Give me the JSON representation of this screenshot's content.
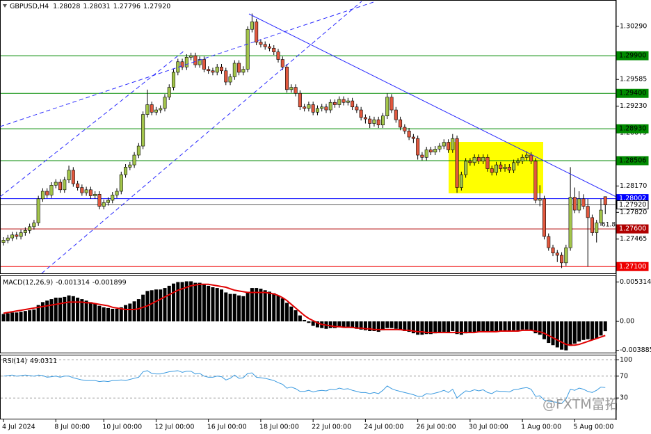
{
  "chart_data": [
    {
      "type": "candlestick",
      "symbol": "GBPUSD,H4",
      "legend_values": [
        "1.28028",
        "1.28031",
        "1.27796",
        "1.27920"
      ],
      "up_color": "#a3c54a",
      "down_color": "#e2583e",
      "open": [
        1.2742,
        1.2745,
        1.2748,
        1.2752,
        1.275,
        1.2755,
        1.2758,
        1.2763,
        1.2768,
        1.28,
        1.281,
        1.2805,
        1.2818,
        1.2822,
        1.2812,
        1.2825,
        1.2838,
        1.282,
        1.2815,
        1.2808,
        1.2812,
        1.2804,
        1.2806,
        1.279,
        1.2795,
        1.2798,
        1.2805,
        1.281,
        1.2832,
        1.2842,
        1.2845,
        1.2858,
        1.287,
        1.2912,
        1.2925,
        1.2915,
        1.2918,
        1.292,
        1.2935,
        1.2948,
        1.2968,
        1.2982,
        1.2975,
        1.2988,
        1.299,
        1.2978,
        1.2985,
        1.2972,
        1.297,
        1.2968,
        1.2975,
        1.297,
        1.2955,
        1.2962,
        1.298,
        1.2968,
        1.2972,
        1.3025,
        1.3035,
        1.3008,
        1.3005,
        1.3002,
        1.3,
        1.2995,
        1.2985,
        1.2975,
        1.2945,
        1.2948,
        1.294,
        1.2922,
        1.292,
        1.2925,
        1.2915,
        1.292,
        1.2922,
        1.2918,
        1.2928,
        1.2925,
        1.2932,
        1.2928,
        1.293,
        1.2922,
        1.2918,
        1.2908,
        1.2906,
        1.29,
        1.2905,
        1.2898,
        1.291,
        1.2935,
        1.2918,
        1.2905,
        1.2895,
        1.289,
        1.2882,
        1.288,
        1.2858,
        1.2855,
        1.2865,
        1.2862,
        1.2866,
        1.287,
        1.2875,
        1.2865,
        1.288,
        1.2815,
        1.2832,
        1.285,
        1.2848,
        1.2855,
        1.285,
        1.2855,
        1.284,
        1.2835,
        1.2845,
        1.284,
        1.2842,
        1.2838,
        1.2848,
        1.285,
        1.2855,
        1.2858,
        1.285,
        1.2798,
        1.28,
        1.275,
        1.2735,
        1.2728,
        1.2725,
        1.2715,
        1.2735,
        1.2802,
        1.2785,
        1.28,
        1.279,
        1.2775,
        1.2755,
        1.2768,
        1.28028
      ],
      "high": [
        1.2749,
        1.2752,
        1.2756,
        1.2756,
        1.2759,
        1.2762,
        1.2767,
        1.2772,
        1.2804,
        1.2814,
        1.2814,
        1.2822,
        1.2826,
        1.2826,
        1.2829,
        1.2844,
        1.2842,
        1.2824,
        1.2819,
        1.2816,
        1.2816,
        1.281,
        1.281,
        1.2799,
        1.2802,
        1.2809,
        1.2814,
        1.2836,
        1.2846,
        1.2849,
        1.2862,
        1.2874,
        1.2916,
        1.2945,
        1.2929,
        1.2922,
        1.2924,
        1.2939,
        1.2952,
        1.2972,
        1.2986,
        1.2986,
        1.2992,
        1.2994,
        1.2994,
        1.2989,
        1.2989,
        1.2976,
        1.2974,
        1.2979,
        1.2979,
        1.2974,
        1.2966,
        1.2984,
        1.2984,
        1.2976,
        1.3029,
        1.3046,
        1.3039,
        1.3012,
        1.3009,
        1.3006,
        1.3004,
        1.2999,
        1.2989,
        1.2979,
        1.2952,
        1.2952,
        1.2944,
        1.2926,
        1.2929,
        1.2929,
        1.2924,
        1.2926,
        1.2926,
        1.2932,
        1.2932,
        1.2936,
        1.2936,
        1.2934,
        1.2934,
        1.2926,
        1.2922,
        1.2912,
        1.291,
        1.2909,
        1.2909,
        1.2914,
        1.294,
        1.2939,
        1.2922,
        1.2909,
        1.2899,
        1.2894,
        1.2886,
        1.2884,
        1.2862,
        1.2869,
        1.2869,
        1.287,
        1.2874,
        1.2879,
        1.2879,
        1.2886,
        1.2884,
        1.2836,
        1.2854,
        1.2854,
        1.2859,
        1.2859,
        1.2859,
        1.2859,
        1.2844,
        1.2849,
        1.2849,
        1.2846,
        1.2846,
        1.2852,
        1.2854,
        1.2859,
        1.2863,
        1.2862,
        1.2854,
        1.2818,
        1.2804,
        1.2754,
        1.2739,
        1.2732,
        1.2729,
        1.2739,
        1.2842,
        1.2815,
        1.281,
        1.2806,
        1.28,
        1.2779,
        1.2772,
        1.28,
        1.28031
      ],
      "low": [
        1.2738,
        1.2741,
        1.2744,
        1.2746,
        1.2746,
        1.2751,
        1.2754,
        1.2759,
        1.2764,
        1.2796,
        1.2801,
        1.2801,
        1.2814,
        1.2808,
        1.2808,
        1.2821,
        1.2816,
        1.2811,
        1.2804,
        1.2804,
        1.28,
        1.28,
        1.2786,
        1.2786,
        1.2791,
        1.2794,
        1.2801,
        1.2806,
        1.2828,
        1.2838,
        1.2841,
        1.2854,
        1.2866,
        1.2908,
        1.2911,
        1.2911,
        1.2914,
        1.2916,
        1.2931,
        1.2944,
        1.2964,
        1.2971,
        1.2971,
        1.2984,
        1.2974,
        1.2974,
        1.2968,
        1.2966,
        1.2964,
        1.2964,
        1.2966,
        1.2951,
        1.2951,
        1.2958,
        1.2964,
        1.2964,
        1.2968,
        1.3021,
        1.3004,
        1.3001,
        1.2998,
        1.2996,
        1.2991,
        1.2981,
        1.2971,
        1.2941,
        1.2941,
        1.2936,
        1.2918,
        1.2916,
        1.2916,
        1.2911,
        1.2911,
        1.2916,
        1.2914,
        1.2914,
        1.2921,
        1.2921,
        1.2924,
        1.2924,
        1.2918,
        1.2914,
        1.2904,
        1.29,
        1.2894,
        1.2896,
        1.2894,
        1.2894,
        1.2906,
        1.2914,
        1.2901,
        1.2891,
        1.2886,
        1.2878,
        1.2874,
        1.2852,
        1.2851,
        1.2851,
        1.2858,
        1.2858,
        1.2862,
        1.2866,
        1.2861,
        1.2861,
        1.2808,
        1.2811,
        1.2828,
        1.2844,
        1.2844,
        1.2846,
        1.2846,
        1.2836,
        1.2831,
        1.2831,
        1.2836,
        1.2836,
        1.2834,
        1.2834,
        1.2844,
        1.2846,
        1.2851,
        1.2846,
        1.2794,
        1.279,
        1.2746,
        1.2731,
        1.2724,
        1.2716,
        1.2708,
        1.2711,
        1.2731,
        1.2781,
        1.2781,
        1.2786,
        1.271,
        1.2751,
        1.2742,
        1.2764,
        1.27796
      ],
      "close": [
        1.2745,
        1.2748,
        1.2752,
        1.275,
        1.2755,
        1.2758,
        1.2763,
        1.2768,
        1.28,
        1.281,
        1.2805,
        1.2818,
        1.2822,
        1.2812,
        1.2825,
        1.2838,
        1.282,
        1.2815,
        1.2808,
        1.2812,
        1.2804,
        1.2806,
        1.279,
        1.2795,
        1.2798,
        1.2805,
        1.281,
        1.2832,
        1.2842,
        1.2845,
        1.2858,
        1.287,
        1.2912,
        1.2925,
        1.2915,
        1.2918,
        1.292,
        1.2935,
        1.2948,
        1.2968,
        1.2982,
        1.2975,
        1.2988,
        1.299,
        1.2978,
        1.2985,
        1.2972,
        1.297,
        1.2968,
        1.2975,
        1.297,
        1.2955,
        1.2962,
        1.298,
        1.2968,
        1.2972,
        1.3025,
        1.3035,
        1.3008,
        1.3005,
        1.3002,
        1.3,
        1.2995,
        1.2985,
        1.2975,
        1.2945,
        1.2948,
        1.294,
        1.2922,
        1.292,
        1.2925,
        1.2915,
        1.292,
        1.2922,
        1.2918,
        1.2928,
        1.2925,
        1.2932,
        1.2928,
        1.293,
        1.2922,
        1.2918,
        1.2908,
        1.2906,
        1.29,
        1.2905,
        1.2898,
        1.291,
        1.2935,
        1.2918,
        1.2905,
        1.2895,
        1.289,
        1.2882,
        1.288,
        1.2858,
        1.2855,
        1.2865,
        1.2862,
        1.2866,
        1.287,
        1.2875,
        1.2865,
        1.288,
        1.2815,
        1.2832,
        1.285,
        1.2848,
        1.2855,
        1.285,
        1.2855,
        1.284,
        1.2835,
        1.2845,
        1.284,
        1.2842,
        1.2838,
        1.2848,
        1.285,
        1.2855,
        1.2858,
        1.285,
        1.2798,
        1.28,
        1.275,
        1.2735,
        1.2728,
        1.2725,
        1.2715,
        1.2735,
        1.2802,
        1.2785,
        1.28,
        1.279,
        1.2775,
        1.2755,
        1.2768,
        1.2785,
        1.2792
      ],
      "ylim": [
        1.2701,
        1.3064
      ],
      "yticks": [
        {
          "value": 1.3029,
          "label": "1.30290"
        },
        {
          "value": 1.29585,
          "label": "1.29585"
        },
        {
          "value": 1.2923,
          "label": "1.29230"
        },
        {
          "value": 1.28875,
          "label": "1.28875"
        },
        {
          "value": 1.2817,
          "label": "1.28170"
        },
        {
          "value": 1.2782,
          "label": "1.27820"
        },
        {
          "value": 1.27465,
          "label": "1.27465"
        }
      ],
      "levels": [
        {
          "value": 1.299,
          "label": "1.29900",
          "color": "#008a00"
        },
        {
          "value": 1.294,
          "label": "1.29400",
          "color": "#008a00"
        },
        {
          "value": 1.2893,
          "label": "1.28930",
          "color": "#008a00"
        },
        {
          "value": 1.28506,
          "label": "1.28506",
          "color": "#008a00"
        },
        {
          "value": 1.28002,
          "label": "1.28002",
          "color": "#0000ff"
        },
        {
          "value": 1.2792,
          "label": "1.27920",
          "color": "#5a5a5a"
        },
        {
          "value": 1.276,
          "label": "1.27600",
          "color": "#b00000"
        },
        {
          "value": 1.271,
          "label": "1.27100",
          "color": "#ee0000"
        }
      ],
      "fib_label": "61.8"
    },
    {
      "type": "macd",
      "name": "MACD(12,26,9)",
      "bar_color": "#000000",
      "signal_color": "#e00000",
      "histogram": [
        0.001,
        0.0011,
        0.0012,
        0.0012,
        0.0013,
        0.0014,
        0.0015,
        0.0016,
        0.0022,
        0.0026,
        0.0028,
        0.003,
        0.0032,
        0.0032,
        0.0033,
        0.0035,
        0.0034,
        0.0032,
        0.003,
        0.0028,
        0.0026,
        0.0024,
        0.0021,
        0.0019,
        0.0018,
        0.0017,
        0.0017,
        0.0019,
        0.0022,
        0.0024,
        0.0027,
        0.003,
        0.0036,
        0.0041,
        0.0042,
        0.0043,
        0.0043,
        0.0045,
        0.0048,
        0.0051,
        0.0053,
        0.0053,
        0.0054,
        0.0054,
        0.0052,
        0.0052,
        0.005,
        0.0048,
        0.0046,
        0.0045,
        0.0043,
        0.0039,
        0.0037,
        0.0037,
        0.0035,
        0.0034,
        0.004,
        0.0045,
        0.0045,
        0.0044,
        0.0042,
        0.004,
        0.0038,
        0.0035,
        0.0031,
        0.0025,
        0.002,
        0.0015,
        0.0008,
        0.0002,
        -0.0002,
        -0.0006,
        -0.0008,
        -0.0009,
        -0.001,
        -0.0009,
        -0.0009,
        -0.0008,
        -0.0008,
        -0.0008,
        -0.0009,
        -0.001,
        -0.0011,
        -0.0012,
        -0.0013,
        -0.0013,
        -0.0014,
        -0.0012,
        -0.0009,
        -0.0009,
        -0.001,
        -0.0012,
        -0.0013,
        -0.0014,
        -0.0016,
        -0.0018,
        -0.0018,
        -0.0017,
        -0.0017,
        -0.0016,
        -0.0015,
        -0.0014,
        -0.0015,
        -0.0013,
        -0.0017,
        -0.0018,
        -0.0016,
        -0.0015,
        -0.0014,
        -0.0014,
        -0.0013,
        -0.0014,
        -0.0014,
        -0.0013,
        -0.0013,
        -0.0013,
        -0.0013,
        -0.0012,
        -0.0012,
        -0.0011,
        -0.0011,
        -0.0012,
        -0.0016,
        -0.0018,
        -0.0024,
        -0.0029,
        -0.0032,
        -0.0035,
        -0.0038,
        -0.0039,
        -0.0033,
        -0.003,
        -0.0027,
        -0.0025,
        -0.0024,
        -0.0025,
        -0.0023,
        -0.0019,
        -0.001314
      ],
      "signal": [
        0.0011,
        0.0012,
        0.0013,
        0.0014,
        0.0015,
        0.0016,
        0.0017,
        0.0018,
        0.0019,
        0.002,
        0.0021,
        0.0022,
        0.0023,
        0.0024,
        0.0025,
        0.0026,
        0.0026,
        0.0026,
        0.0026,
        0.0025,
        0.0025,
        0.0024,
        0.0023,
        0.0022,
        0.0021,
        0.0019,
        0.0018,
        0.0017,
        0.0016,
        0.0016,
        0.0016,
        0.0017,
        0.0019,
        0.0021,
        0.0024,
        0.0027,
        0.003,
        0.0033,
        0.0036,
        0.0039,
        0.0042,
        0.0044,
        0.0046,
        0.0048,
        0.0049,
        0.005,
        0.005,
        0.005,
        0.0049,
        0.0048,
        0.0047,
        0.0046,
        0.0044,
        0.0042,
        0.0041,
        0.004,
        0.0039,
        0.0039,
        0.0039,
        0.0039,
        0.0039,
        0.0038,
        0.0037,
        0.0035,
        0.0032,
        0.0028,
        0.0023,
        0.0018,
        0.0013,
        0.0008,
        0.0004,
        0.0001,
        -0.0002,
        -0.0004,
        -0.0005,
        -0.0006,
        -0.0007,
        -0.0007,
        -0.0008,
        -0.0008,
        -0.0008,
        -0.0009,
        -0.0009,
        -0.001,
        -0.001,
        -0.0011,
        -0.0011,
        -0.0011,
        -0.0011,
        -0.0011,
        -0.0011,
        -0.0011,
        -0.0012,
        -0.0012,
        -0.0013,
        -0.0014,
        -0.0014,
        -0.0015,
        -0.0015,
        -0.0015,
        -0.0015,
        -0.0015,
        -0.0015,
        -0.0015,
        -0.0015,
        -0.0015,
        -0.0015,
        -0.0015,
        -0.0015,
        -0.0014,
        -0.0014,
        -0.0014,
        -0.0014,
        -0.0014,
        -0.0013,
        -0.0013,
        -0.0013,
        -0.0013,
        -0.0013,
        -0.0012,
        -0.0012,
        -0.0012,
        -0.0013,
        -0.0014,
        -0.0016,
        -0.0019,
        -0.0022,
        -0.0025,
        -0.0028,
        -0.0031,
        -0.0032,
        -0.0032,
        -0.0031,
        -0.0029,
        -0.0027,
        -0.0025,
        -0.0023,
        -0.0021,
        -0.001899
      ],
      "ylim": [
        -0.0043,
        0.0061
      ],
      "yticks": [
        0.005314,
        {
          "value": 0,
          "label": "0.00"
        },
        -0.003885
      ]
    },
    {
      "type": "line",
      "name": "RSI(14)",
      "color": "#3a9ae0",
      "values": [
        70,
        71,
        72,
        70,
        71,
        72,
        71,
        70,
        72,
        71,
        68,
        69,
        70,
        68,
        70,
        70,
        67,
        65,
        63,
        62,
        62,
        62,
        60,
        61,
        60,
        62,
        62,
        63,
        62,
        64,
        66,
        68,
        78,
        80,
        75,
        74,
        74,
        76,
        78,
        79,
        80,
        77,
        79,
        79,
        74,
        75,
        70,
        68,
        68,
        70,
        69,
        63,
        66,
        72,
        66,
        67,
        75,
        76,
        68,
        67,
        66,
        64,
        62,
        58,
        55,
        48,
        50,
        47,
        42,
        42,
        44,
        41,
        43,
        44,
        43,
        46,
        45,
        48,
        46,
        47,
        44,
        42,
        40,
        40,
        38,
        40,
        38,
        44,
        52,
        47,
        44,
        42,
        40,
        38,
        36,
        33,
        33,
        38,
        37,
        39,
        41,
        44,
        40,
        46,
        30,
        37,
        43,
        42,
        45,
        43,
        45,
        40,
        38,
        43,
        42,
        42,
        41,
        45,
        46,
        48,
        49,
        46,
        33,
        34,
        26,
        24,
        23,
        22,
        20,
        28,
        46,
        44,
        48,
        46,
        42,
        40,
        44,
        50,
        49.0311
      ],
      "ylim": [
        -8,
        108
      ],
      "yticks": [
        100,
        70,
        30
      ],
      "xticks": [
        {
          "value": 0,
          "label": "4 Jul 2024"
        },
        {
          "value": 12,
          "label": "8 Jul 00:00"
        },
        {
          "value": 23,
          "label": "10 Jul 00:00"
        },
        {
          "value": 35,
          "label": "12 Jul 00:00"
        },
        {
          "value": 47,
          "label": "16 Jul 00:00"
        },
        {
          "value": 59,
          "label": "18 Jul 00:00"
        },
        {
          "value": 71,
          "label": "22 Jul 00:00"
        },
        {
          "value": 83,
          "label": "24 Jul 00:00"
        },
        {
          "value": 95,
          "label": "26 Jul 00:00"
        },
        {
          "value": 107,
          "label": "30 Jul 00:00"
        },
        {
          "value": 119,
          "label": "1 Aug 00:00"
        },
        {
          "value": 131,
          "label": "5 Aug 00:00"
        }
      ],
      "watermark": "@FXTM富拓"
    }
  ]
}
